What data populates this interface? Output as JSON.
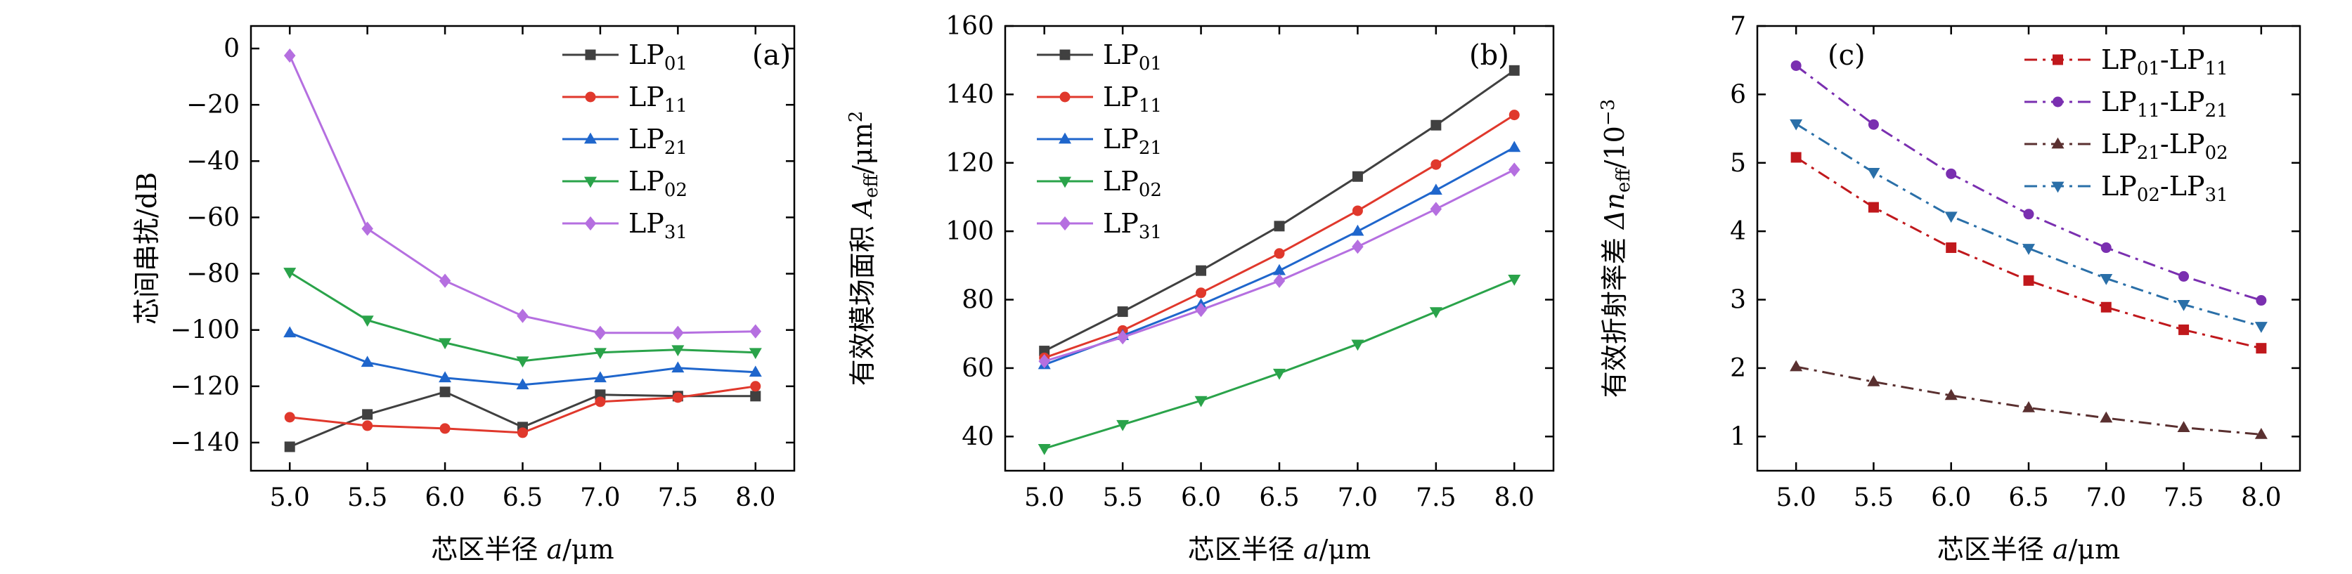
{
  "colors": {
    "black": "#404040",
    "red": "#e0382c",
    "blue": "#1f66cc",
    "green": "#2aa34a",
    "purple": "#b56fe0",
    "dred": "#c0181c",
    "dpurple": "#7a2fb0",
    "dbrown": "#5a3030",
    "steel": "#2a6fa8"
  },
  "chart_data": [
    {
      "id": "a",
      "type": "line",
      "panel_label": "(a)",
      "xlabel": "芯区半径 a/μm",
      "ylabel": "芯间串扰/dB",
      "x": [
        5.0,
        5.5,
        6.0,
        6.5,
        7.0,
        7.5,
        8.0
      ],
      "xlim": [
        4.75,
        8.25
      ],
      "ylim": [
        -150,
        8
      ],
      "xticks": [
        "5.0",
        "5.5",
        "6.0",
        "6.5",
        "7.0",
        "7.5",
        "8.0"
      ],
      "yticks": [
        0,
        -20,
        -40,
        -60,
        -80,
        -100,
        -120,
        -140
      ],
      "ytick_labels": [
        "0",
        "−20",
        "−40",
        "−60",
        "−80",
        "−100",
        "−120",
        "−140"
      ],
      "legend_position": "top-right",
      "series": [
        {
          "name": "LP01",
          "base": "LP",
          "sub": "01",
          "color": "black",
          "marker": "square",
          "dash": "solid",
          "values": [
            -141.5,
            -130,
            -122,
            -134.5,
            -123,
            -123.5,
            -123.5
          ]
        },
        {
          "name": "LP11",
          "base": "LP",
          "sub": "11",
          "color": "red",
          "marker": "circle",
          "dash": "solid",
          "values": [
            -131,
            -134,
            -135,
            -136.5,
            -125.5,
            -124,
            -120
          ]
        },
        {
          "name": "LP21",
          "base": "LP",
          "sub": "21",
          "color": "blue",
          "marker": "triangle-up",
          "dash": "solid",
          "values": [
            -101,
            -111.5,
            -117,
            -119.5,
            -117,
            -113.5,
            -115
          ]
        },
        {
          "name": "LP02",
          "base": "LP",
          "sub": "02",
          "color": "green",
          "marker": "triangle-down",
          "dash": "solid",
          "values": [
            -79.5,
            -96.5,
            -104.5,
            -111,
            -108,
            -107,
            -108
          ]
        },
        {
          "name": "LP31",
          "base": "LP",
          "sub": "31",
          "color": "purple",
          "marker": "diamond",
          "dash": "solid",
          "values": [
            -2.5,
            -64,
            -82.5,
            -95,
            -101,
            -101,
            -100.5
          ]
        }
      ]
    },
    {
      "id": "b",
      "type": "line",
      "panel_label": "(b)",
      "xlabel": "芯区半径 a/μm",
      "ylabel": "有效模场面积 Aeff/μm2",
      "ylabel_parts": {
        "cn": "有效模场面积 ",
        "var": "A",
        "sub": "eff",
        "unit": "/μm",
        "sup": "2"
      },
      "x": [
        5.0,
        5.5,
        6.0,
        6.5,
        7.0,
        7.5,
        8.0
      ],
      "xlim": [
        4.75,
        8.25
      ],
      "ylim": [
        30,
        160
      ],
      "xticks": [
        "5.0",
        "5.5",
        "6.0",
        "6.5",
        "7.0",
        "7.5",
        "8.0"
      ],
      "yticks": [
        40,
        60,
        80,
        100,
        120,
        140,
        160
      ],
      "ytick_labels": [
        "40",
        "60",
        "80",
        "100",
        "120",
        "140",
        "160"
      ],
      "legend_position": "top-left",
      "series": [
        {
          "name": "LP01",
          "base": "LP",
          "sub": "01",
          "color": "black",
          "marker": "square",
          "dash": "solid",
          "values": [
            65,
            76.5,
            88.5,
            101.5,
            116,
            131,
            147
          ]
        },
        {
          "name": "LP11",
          "base": "LP",
          "sub": "11",
          "color": "red",
          "marker": "circle",
          "dash": "solid",
          "values": [
            63,
            71,
            82,
            93.5,
            106,
            119.5,
            134
          ]
        },
        {
          "name": "LP21",
          "base": "LP",
          "sub": "21",
          "color": "blue",
          "marker": "triangle-up",
          "dash": "solid",
          "values": [
            61,
            69.5,
            78.5,
            88.5,
            100,
            112,
            124.5
          ]
        },
        {
          "name": "LP02",
          "base": "LP",
          "sub": "02",
          "color": "green",
          "marker": "triangle-down",
          "dash": "solid",
          "values": [
            36.5,
            43.5,
            50.5,
            58.5,
            67,
            76.5,
            86
          ]
        },
        {
          "name": "LP31",
          "base": "LP",
          "sub": "31",
          "color": "purple",
          "marker": "diamond",
          "dash": "solid",
          "values": [
            62,
            69,
            77,
            85.5,
            95.5,
            106.5,
            118
          ]
        }
      ]
    },
    {
      "id": "c",
      "type": "line",
      "panel_label": "(c)",
      "xlabel": "芯区半径 a/μm",
      "ylabel": "有效折射率差 Δneff/10−3",
      "ylabel_parts": {
        "cn": "有效折射率差 ",
        "var": "Δn",
        "sub": "eff",
        "unit": "/10",
        "sup": "−3"
      },
      "x": [
        5.0,
        5.5,
        6.0,
        6.5,
        7.0,
        7.5,
        8.0
      ],
      "xlim": [
        4.75,
        8.25
      ],
      "ylim": [
        0.5,
        7
      ],
      "xticks": [
        "5.0",
        "5.5",
        "6.0",
        "6.5",
        "7.0",
        "7.5",
        "8.0"
      ],
      "yticks": [
        1,
        2,
        3,
        4,
        5,
        6,
        7
      ],
      "ytick_labels": [
        "1",
        "2",
        "3",
        "4",
        "5",
        "6",
        "7"
      ],
      "legend_position": "top-right",
      "series": [
        {
          "name": "LP01-LP11",
          "base": "LP",
          "sub": "01",
          "base2": "-LP",
          "sub2": "11",
          "color": "dred",
          "marker": "square",
          "dash": "dashdot",
          "values": [
            5.08,
            4.35,
            3.76,
            3.28,
            2.89,
            2.56,
            2.29
          ]
        },
        {
          "name": "LP11-LP21",
          "base": "LP",
          "sub": "11",
          "base2": "-LP",
          "sub2": "21",
          "color": "dpurple",
          "marker": "circle",
          "dash": "dashdot",
          "values": [
            6.42,
            5.56,
            4.84,
            4.25,
            3.76,
            3.34,
            2.99
          ]
        },
        {
          "name": "LP21-LP02",
          "base": "LP",
          "sub": "21",
          "base2": "-LP",
          "sub2": "02",
          "color": "dbrown",
          "marker": "triangle-up",
          "dash": "dashdot",
          "values": [
            2.02,
            1.8,
            1.6,
            1.42,
            1.27,
            1.13,
            1.03
          ]
        },
        {
          "name": "LP02-LP31",
          "base": "LP",
          "sub": "02",
          "base2": "-LP",
          "sub2": "31",
          "color": "steel",
          "marker": "triangle-down",
          "dash": "dashdot",
          "values": [
            5.57,
            4.86,
            4.22,
            3.75,
            3.31,
            2.93,
            2.61
          ]
        }
      ]
    }
  ]
}
